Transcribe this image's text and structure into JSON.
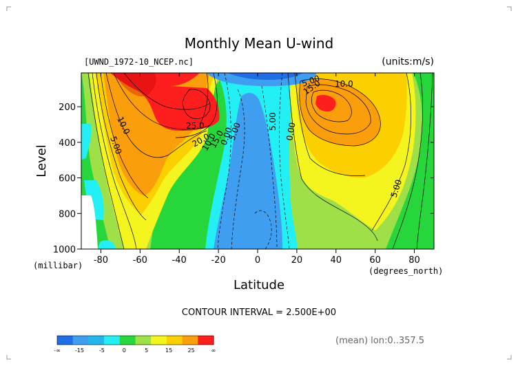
{
  "chart_data": {
    "type": "contour",
    "title": "Monthly Mean U-wind",
    "subtitle_left": "[UWND_1972-10_NCEP.nc]",
    "subtitle_right": "(units:m/s)",
    "xlabel": "Latitude",
    "xunit": "(degrees_north)",
    "ylabel": "Level",
    "yunit": "(millibar)",
    "xlim": [
      -90,
      90
    ],
    "ylim": [
      1000,
      10
    ],
    "x_ticks": [
      "-80",
      "-60",
      "-40",
      "-20",
      "0",
      "20",
      "40",
      "60",
      "80"
    ],
    "y_ticks": [
      "200",
      "400",
      "600",
      "800",
      "1000"
    ],
    "contour_interval_text": "CONTOUR INTERVAL = 2.500E+00",
    "averaging_note": "(mean) lon:0..357.5",
    "contour_labels": [
      "5.00",
      "10.0",
      "15.0",
      "20.0",
      "25.0",
      "10.0",
      "5.00",
      "0.00",
      "5.00",
      "0.00",
      "15.0",
      "10.0",
      "5.00",
      "5.00"
    ],
    "legend": {
      "bounds": [
        "-∞",
        "-15",
        "-5",
        "0",
        "5",
        "15",
        "25",
        "∞"
      ],
      "colors": [
        "#1f6ee6",
        "#3f9ef0",
        "#23b6e8",
        "#22f0f4",
        "#26d63a",
        "#9fe048",
        "#f4f41e",
        "#fcd000",
        "#fb9e0c",
        "#ff1e1e"
      ]
    }
  }
}
